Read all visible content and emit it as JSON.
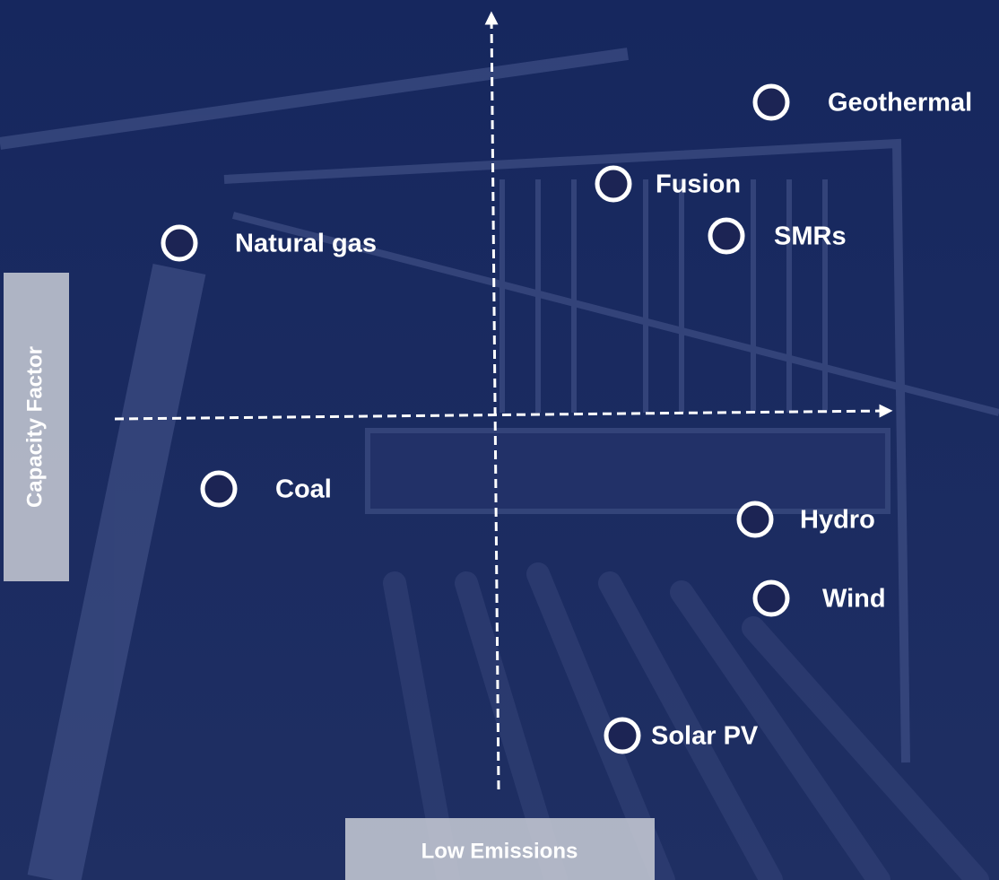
{
  "axes": {
    "x_label": "Low Emissions",
    "y_label": "Capacity Factor"
  },
  "nodes": [
    {
      "label": "Geothermal"
    },
    {
      "label": "Fusion"
    },
    {
      "label": "SMRs"
    },
    {
      "label": "Natural gas"
    },
    {
      "label": "Coal"
    },
    {
      "label": "Hydro"
    },
    {
      "label": "Wind"
    },
    {
      "label": "Solar PV"
    }
  ]
}
